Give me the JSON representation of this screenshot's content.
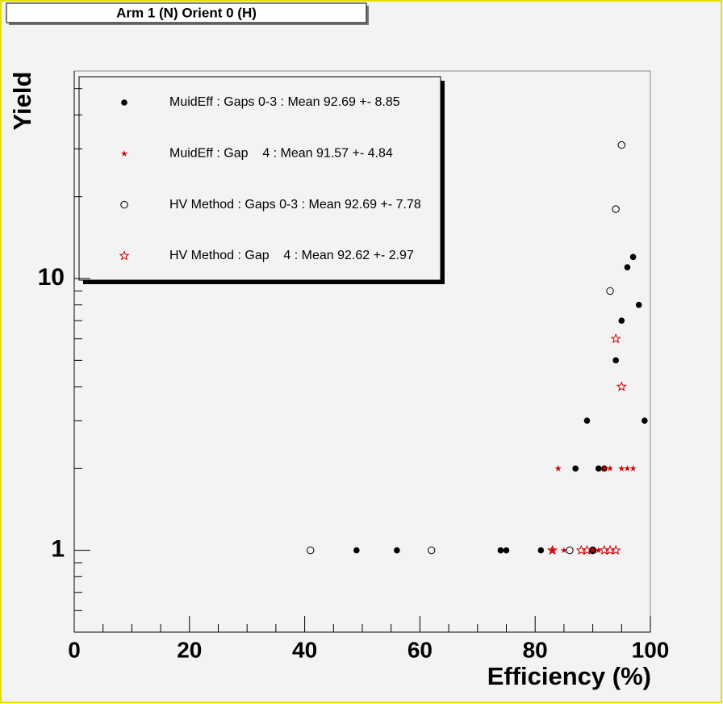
{
  "chart_data": {
    "type": "scatter",
    "title": "Arm 1 (N) Orient 0 (H)",
    "x_label": "Efficiency (%)",
    "y_label": "Yield",
    "xlim": [
      0,
      100
    ],
    "xticks": [
      0,
      20,
      40,
      60,
      80,
      100
    ],
    "ylim": [
      0.5,
      58
    ],
    "yticks": [
      1,
      10
    ],
    "ylog": true,
    "series": [
      {
        "name": "MuidEff : Gaps 0-3 : Mean 92.69 +- 8.85",
        "color": "#000000",
        "marker": "filled-circle",
        "x": [
          49,
          56,
          74,
          75,
          81,
          90,
          87,
          91,
          92,
          89,
          94,
          95,
          96,
          97,
          98,
          99
        ],
        "values": [
          1,
          1,
          1,
          1,
          1,
          1,
          2,
          2,
          2,
          3,
          5,
          7,
          11,
          12,
          8,
          3
        ]
      },
      {
        "name": "MuidEff : Gap    4 : Mean 91.57 +- 4.84",
        "color": "#cc0000",
        "marker": "asterisk",
        "x": [
          83,
          84,
          85,
          90,
          91,
          92,
          93,
          95,
          96,
          97
        ],
        "values": [
          1,
          2,
          1,
          1,
          1,
          2,
          2,
          2,
          2,
          2
        ]
      },
      {
        "name": "HV Method : Gaps 0-3 : Mean 92.69 +- 7.78",
        "color": "#000000",
        "marker": "open-circle",
        "x": [
          41,
          62,
          86,
          90,
          93,
          94,
          95
        ],
        "values": [
          1,
          1,
          1,
          1,
          9,
          18,
          31
        ]
      },
      {
        "name": "HV Method : Gap    4 : Mean 92.62 +- 2.97",
        "color": "#cc0000",
        "marker": "open-star",
        "x": [
          83,
          88,
          89,
          92,
          93,
          94,
          94,
          95
        ],
        "values": [
          1,
          1,
          1,
          1,
          1,
          1,
          6,
          4
        ]
      }
    ]
  }
}
